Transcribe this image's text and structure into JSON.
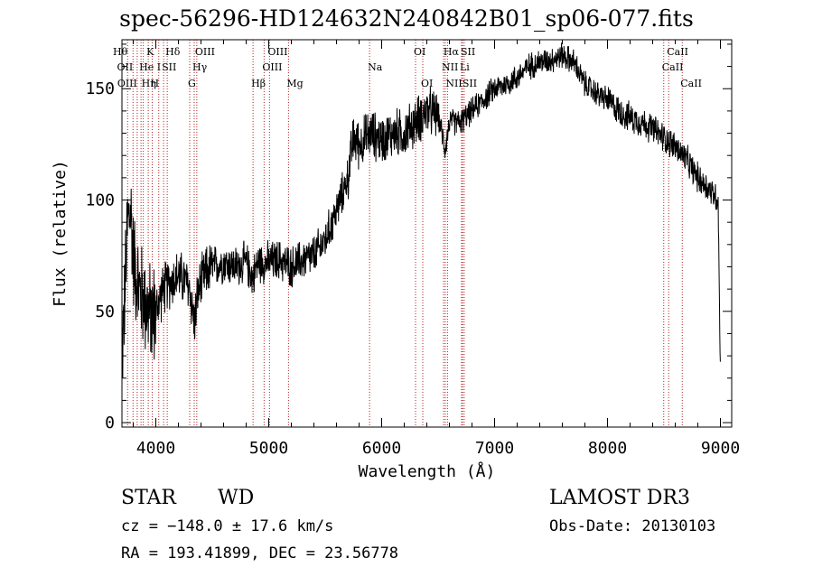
{
  "chart_data": {
    "type": "line",
    "title": "spec-56296-HD124632N240842B01_sp06-077.fits",
    "xlabel": "Wavelength (Å)",
    "ylabel": "Flux (relative)",
    "xlim": [
      3700,
      9100
    ],
    "ylim": [
      -2,
      172
    ],
    "xticks": [
      4000,
      5000,
      6000,
      7000,
      8000,
      9000
    ],
    "yticks": [
      0,
      50,
      100,
      150
    ],
    "x_minor_step": 200,
    "y_minor_step": 10,
    "grid": false,
    "series": [
      {
        "name": "flux",
        "color": "#000000",
        "x_start": 3700,
        "x_end": 9000,
        "anchors": [
          [
            3700,
            30
          ],
          [
            3720,
            50
          ],
          [
            3750,
            90
          ],
          [
            3780,
            95
          ],
          [
            3800,
            75
          ],
          [
            3850,
            60
          ],
          [
            3900,
            55
          ],
          [
            3950,
            48
          ],
          [
            4000,
            50
          ],
          [
            4050,
            58
          ],
          [
            4100,
            62
          ],
          [
            4150,
            64
          ],
          [
            4200,
            66
          ],
          [
            4250,
            64
          ],
          [
            4300,
            60
          ],
          [
            4340,
            45
          ],
          [
            4380,
            60
          ],
          [
            4450,
            68
          ],
          [
            4500,
            70
          ],
          [
            4600,
            72
          ],
          [
            4700,
            70
          ],
          [
            4800,
            72
          ],
          [
            4860,
            65
          ],
          [
            4900,
            72
          ],
          [
            5000,
            72
          ],
          [
            5100,
            73
          ],
          [
            5200,
            70
          ],
          [
            5300,
            73
          ],
          [
            5400,
            75
          ],
          [
            5500,
            82
          ],
          [
            5600,
            95
          ],
          [
            5700,
            110
          ],
          [
            5750,
            128
          ],
          [
            5800,
            125
          ],
          [
            5900,
            130
          ],
          [
            6000,
            127
          ],
          [
            6100,
            130
          ],
          [
            6200,
            130
          ],
          [
            6300,
            135
          ],
          [
            6400,
            140
          ],
          [
            6500,
            138
          ],
          [
            6563,
            123
          ],
          [
            6600,
            135
          ],
          [
            6700,
            135
          ],
          [
            6800,
            140
          ],
          [
            6900,
            145
          ],
          [
            7000,
            150
          ],
          [
            7100,
            152
          ],
          [
            7200,
            155
          ],
          [
            7300,
            160
          ],
          [
            7400,
            162
          ],
          [
            7500,
            163
          ],
          [
            7600,
            165
          ],
          [
            7700,
            162
          ],
          [
            7800,
            152
          ],
          [
            7900,
            148
          ],
          [
            8000,
            145
          ],
          [
            8100,
            140
          ],
          [
            8200,
            137
          ],
          [
            8300,
            135
          ],
          [
            8400,
            132
          ],
          [
            8500,
            128
          ],
          [
            8600,
            124
          ],
          [
            8700,
            118
          ],
          [
            8800,
            110
          ],
          [
            8900,
            105
          ],
          [
            8950,
            102
          ],
          [
            8980,
            100
          ],
          [
            9000,
            20
          ]
        ]
      }
    ],
    "lines": [
      {
        "wavelength": 3750,
        "label": "Hθ",
        "row": 0,
        "align": "end"
      },
      {
        "wavelength": 3798,
        "label": "OII",
        "row": 1,
        "align": "end"
      },
      {
        "wavelength": 3835,
        "label": "OIII",
        "row": 2,
        "align": "end"
      },
      {
        "wavelength": 3869,
        "label": "He",
        "row": 1,
        "align": "start"
      },
      {
        "wavelength": 3889,
        "label": "Hη",
        "row": 2,
        "align": "start"
      },
      {
        "wavelength": 3933,
        "label": "K",
        "row": 0,
        "align": "start"
      },
      {
        "wavelength": 3968,
        "label": "H",
        "row": 2,
        "align": "start"
      },
      {
        "wavelength": 4026,
        "label": "I",
        "row": 1,
        "align": "start"
      },
      {
        "wavelength": 4069,
        "label": "SII",
        "row": 1,
        "align": "start"
      },
      {
        "wavelength": 4101,
        "label": "Hδ",
        "row": 0,
        "align": "start"
      },
      {
        "wavelength": 4300,
        "label": "G",
        "row": 2,
        "align": "start"
      },
      {
        "wavelength": 4340,
        "label": "Hγ",
        "row": 1,
        "align": "start"
      },
      {
        "wavelength": 4363,
        "label": "OIII",
        "row": 0,
        "align": "start"
      },
      {
        "wavelength": 4861,
        "label": "Hβ",
        "row": 2,
        "align": "start"
      },
      {
        "wavelength": 4959,
        "label": "OIII",
        "row": 1,
        "align": "start"
      },
      {
        "wavelength": 5007,
        "label": "OIII",
        "row": 0,
        "align": "start"
      },
      {
        "wavelength": 5175,
        "label": "Mg",
        "row": 2,
        "align": "start"
      },
      {
        "wavelength": 5893,
        "label": "Na",
        "row": 1,
        "align": "start"
      },
      {
        "wavelength": 6300,
        "label": "OI",
        "row": 0,
        "align": "start"
      },
      {
        "wavelength": 6364,
        "label": "OI",
        "row": 2,
        "align": "start"
      },
      {
        "wavelength": 6548,
        "label": "NII",
        "row": 1,
        "align": "start"
      },
      {
        "wavelength": 6563,
        "label": "Hα",
        "row": 0,
        "align": "start"
      },
      {
        "wavelength": 6583,
        "label": "NII",
        "row": 2,
        "align": "start"
      },
      {
        "wavelength": 6708,
        "label": "Li",
        "row": 1,
        "align": "start"
      },
      {
        "wavelength": 6716,
        "label": "SII",
        "row": 0,
        "align": "start"
      },
      {
        "wavelength": 6731,
        "label": "SII",
        "row": 2,
        "align": "start"
      },
      {
        "wavelength": 8498,
        "label": "CaII",
        "row": 1,
        "align": "start"
      },
      {
        "wavelength": 8542,
        "label": "CaII",
        "row": 0,
        "align": "start"
      },
      {
        "wavelength": 8662,
        "label": "CaII",
        "row": 2,
        "align": "start"
      }
    ],
    "line_marker_color": "#b22222"
  },
  "info": {
    "class_label": "STAR",
    "subclass_label": "WD",
    "survey": "LAMOST DR3",
    "cz": "cz = −148.0 ± 17.6 km/s",
    "obs_date": "Obs-Date: 20130103",
    "coords": "RA = 193.41899, DEC =  23.56778"
  }
}
